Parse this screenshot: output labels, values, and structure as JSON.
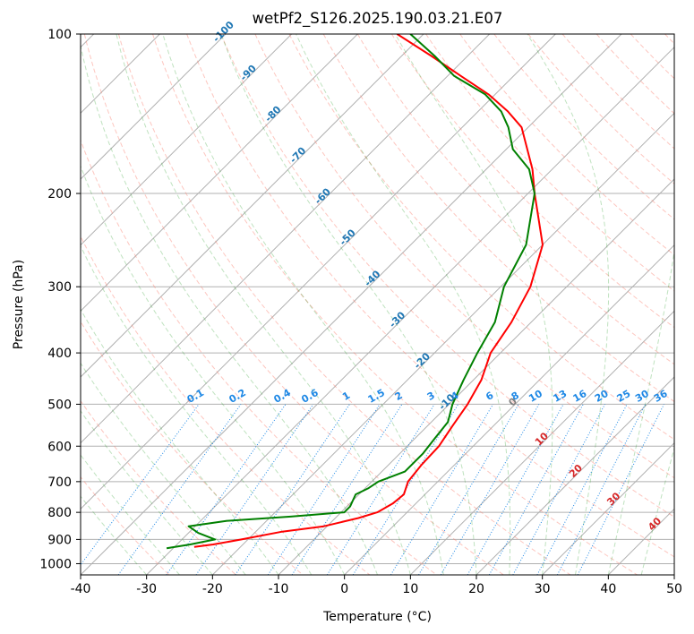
{
  "chart_data": {
    "type": "line",
    "subtype": "skew-T log-P diagram",
    "title": "wetPf2_S126.2025.190.03.21.E07",
    "xlabel": "Temperature (°C)",
    "ylabel": "Pressure (hPa)",
    "xlim": [
      -40,
      50
    ],
    "ylim": [
      1050,
      100
    ],
    "y_scale": "log",
    "grid": true,
    "x_ticks": [
      "-40",
      "-30",
      "-20",
      "-10",
      "0",
      "10",
      "20",
      "30",
      "40",
      "50"
    ],
    "y_ticks": [
      "100",
      "200",
      "300",
      "400",
      "500",
      "600",
      "700",
      "800",
      "900",
      "1000"
    ],
    "series": [
      {
        "role": "temperature",
        "color": "#ff0000",
        "points": [
          {
            "p": 930,
            "t": -27.0
          },
          {
            "p": 920,
            "t": -24.5
          },
          {
            "p": 900,
            "t": -21.0
          },
          {
            "p": 870,
            "t": -16.0
          },
          {
            "p": 850,
            "t": -10.5
          },
          {
            "p": 820,
            "t": -6.5
          },
          {
            "p": 800,
            "t": -4.5
          },
          {
            "p": 770,
            "t": -3.5
          },
          {
            "p": 740,
            "t": -3.2
          },
          {
            "p": 700,
            "t": -4.5
          },
          {
            "p": 650,
            "t": -5.0
          },
          {
            "p": 600,
            "t": -5.2
          },
          {
            "p": 550,
            "t": -6.2
          },
          {
            "p": 500,
            "t": -7.2
          },
          {
            "p": 450,
            "t": -8.8
          },
          {
            "p": 400,
            "t": -11.5
          },
          {
            "p": 350,
            "t": -13.0
          },
          {
            "p": 300,
            "t": -15.5
          },
          {
            "p": 250,
            "t": -20.0
          },
          {
            "p": 200,
            "t": -29.0
          },
          {
            "p": 180,
            "t": -33.0
          },
          {
            "p": 150,
            "t": -41.0
          },
          {
            "p": 140,
            "t": -45.5
          },
          {
            "p": 130,
            "t": -51.0
          },
          {
            "p": 120,
            "t": -58.0
          },
          {
            "p": 110,
            "t": -65.5
          },
          {
            "p": 100,
            "t": -74.0
          }
        ]
      },
      {
        "role": "dewpoint",
        "color": "#008000",
        "points": [
          {
            "p": 935,
            "t": -31.0
          },
          {
            "p": 920,
            "t": -28.0
          },
          {
            "p": 900,
            "t": -25.0
          },
          {
            "p": 875,
            "t": -28.5
          },
          {
            "p": 850,
            "t": -31.0
          },
          {
            "p": 830,
            "t": -26.0
          },
          {
            "p": 815,
            "t": -17.0
          },
          {
            "p": 800,
            "t": -9.5
          },
          {
            "p": 780,
            "t": -9.5
          },
          {
            "p": 760,
            "t": -10.0
          },
          {
            "p": 740,
            "t": -10.5
          },
          {
            "p": 720,
            "t": -9.5
          },
          {
            "p": 700,
            "t": -9.0
          },
          {
            "p": 670,
            "t": -6.5
          },
          {
            "p": 620,
            "t": -6.5
          },
          {
            "p": 580,
            "t": -7.0
          },
          {
            "p": 540,
            "t": -7.5
          },
          {
            "p": 500,
            "t": -9.5
          },
          {
            "p": 450,
            "t": -11.5
          },
          {
            "p": 400,
            "t": -13.5
          },
          {
            "p": 350,
            "t": -15.5
          },
          {
            "p": 300,
            "t": -19.5
          },
          {
            "p": 250,
            "t": -22.5
          },
          {
            "p": 200,
            "t": -29.0
          },
          {
            "p": 180,
            "t": -33.5
          },
          {
            "p": 165,
            "t": -39.0
          },
          {
            "p": 150,
            "t": -43.0
          },
          {
            "p": 140,
            "t": -46.5
          },
          {
            "p": 130,
            "t": -51.5
          },
          {
            "p": 120,
            "t": -59.0
          },
          {
            "p": 110,
            "t": -65.0
          },
          {
            "p": 100,
            "t": -72.0
          }
        ]
      }
    ],
    "isotherm_labels": [
      "-100",
      "-90",
      "-80",
      "-70",
      "-60",
      "-50",
      "-40",
      "-30",
      "-20",
      "-10",
      "0",
      "10",
      "20",
      "30",
      "40"
    ],
    "mixing_ratio_labels": [
      "0.1",
      "0.2",
      "0.4",
      "0.6",
      "1",
      "1.5",
      "2",
      "3",
      "4",
      "6",
      "8",
      "10",
      "13",
      "16",
      "20",
      "25",
      "30",
      "36"
    ]
  }
}
